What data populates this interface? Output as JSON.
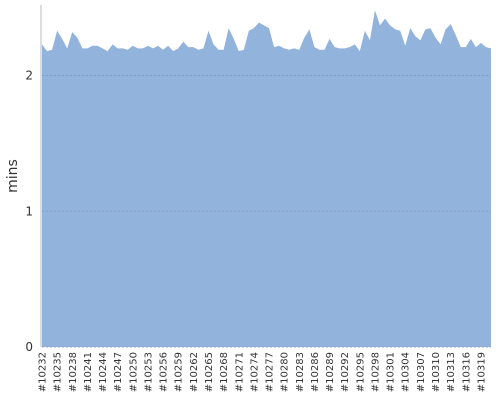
{
  "chart_data": {
    "type": "area",
    "y_label": "mins",
    "categories": [
      "#10232",
      null,
      null,
      "#10235",
      null,
      null,
      "#10238",
      null,
      null,
      "#10241",
      null,
      null,
      "#10244",
      null,
      null,
      "#10247",
      null,
      null,
      "#10250",
      null,
      null,
      "#10253",
      null,
      null,
      "#10256",
      null,
      null,
      "#10259",
      null,
      null,
      "#10262",
      null,
      null,
      "#10265",
      null,
      null,
      "#10268",
      null,
      null,
      "#10271",
      null,
      null,
      "#10274",
      null,
      null,
      "#10277",
      null,
      null,
      "#10280",
      null,
      null,
      "#10283",
      null,
      null,
      "#10286",
      null,
      null,
      "#10289",
      null,
      null,
      "#10292",
      null,
      null,
      "#10295",
      null,
      null,
      "#10298",
      null,
      null,
      "#10301",
      null,
      null,
      "#10304",
      null,
      null,
      "#10307",
      null,
      null,
      "#10310",
      null,
      null,
      "#10313",
      null,
      null,
      "#10316",
      null,
      null,
      "#10319",
      null,
      null
    ],
    "values": [
      2.23,
      2.18,
      2.19,
      2.33,
      2.27,
      2.2,
      2.32,
      2.28,
      2.2,
      2.2,
      2.22,
      2.22,
      2.2,
      2.18,
      2.23,
      2.2,
      2.2,
      2.19,
      2.22,
      2.2,
      2.2,
      2.22,
      2.2,
      2.22,
      2.19,
      2.22,
      2.18,
      2.2,
      2.25,
      2.21,
      2.21,
      2.19,
      2.2,
      2.33,
      2.23,
      2.19,
      2.19,
      2.35,
      2.27,
      2.18,
      2.19,
      2.33,
      2.35,
      2.39,
      2.37,
      2.35,
      2.21,
      2.22,
      2.2,
      2.19,
      2.2,
      2.19,
      2.28,
      2.34,
      2.21,
      2.19,
      2.19,
      2.27,
      2.21,
      2.2,
      2.2,
      2.21,
      2.23,
      2.18,
      2.33,
      2.26,
      2.48,
      2.37,
      2.42,
      2.37,
      2.34,
      2.33,
      2.22,
      2.35,
      2.29,
      2.26,
      2.34,
      2.35,
      2.28,
      2.23,
      2.34,
      2.38,
      2.3,
      2.21,
      2.21,
      2.27,
      2.21,
      2.24,
      2.21,
      2.2
    ],
    "color": "#92b3db",
    "ylim": [
      0,
      2.52
    ],
    "yticks": [
      0,
      1,
      2
    ],
    "grid": true
  }
}
